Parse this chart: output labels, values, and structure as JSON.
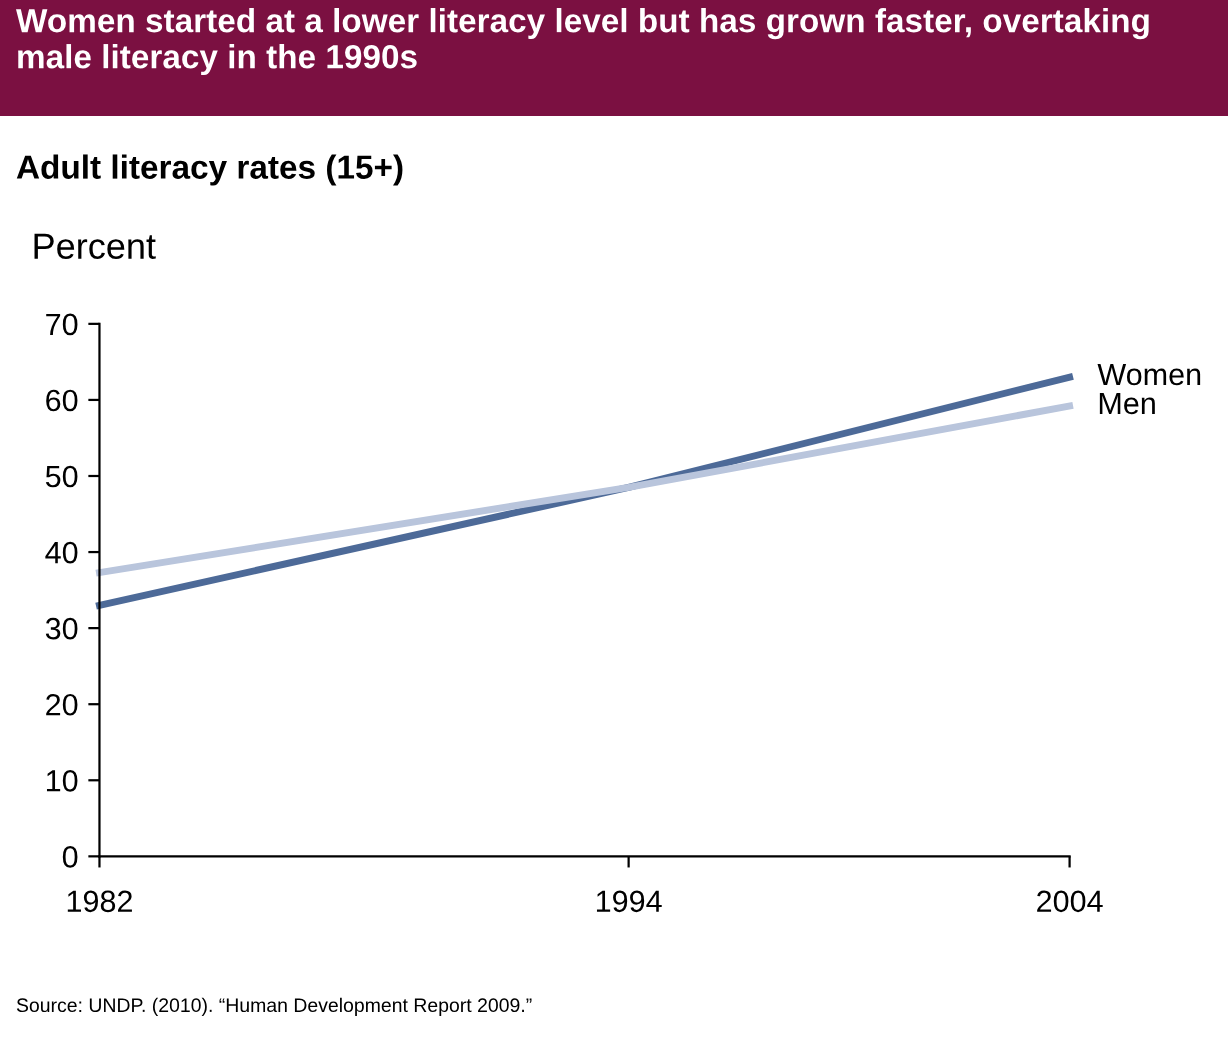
{
  "chart_data": {
    "type": "line",
    "title": "Women started at a lower literacy level but has grown faster, overtaking male literacy in the 1990s",
    "subtitle": "Adult literacy rates (15+)",
    "ylabel": "Percent",
    "x": [
      1982,
      1994,
      2004
    ],
    "series": [
      {
        "name": "Women",
        "color": "#4d6a98",
        "values": [
          33,
          48.5,
          63
        ]
      },
      {
        "name": "Men",
        "color": "#b9c5dc",
        "values": [
          37.3,
          48.5,
          59.2
        ]
      }
    ],
    "xlim": [
      1982,
      2004
    ],
    "xticks": [
      1982,
      1994,
      2004
    ],
    "ylim": [
      0,
      70
    ],
    "yticks": [
      0,
      10,
      20,
      30,
      40,
      50,
      60,
      70
    ],
    "grid": false,
    "legend": false,
    "marker": "none",
    "line_style": "solid",
    "annotations": [
      "Source: UNDP. (2010). “Human Development Report 2009.”"
    ]
  }
}
